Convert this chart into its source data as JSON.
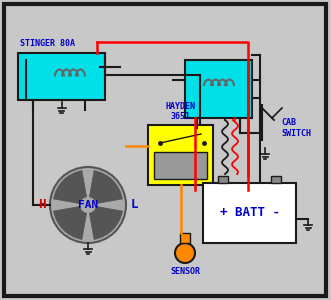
{
  "bg_color": "#c8c8c8",
  "border_color": "#1a1a1a",
  "relay_color": "#00e0e8",
  "hayden_color": "#ffff00",
  "battery_color": "#ffffff",
  "sensor_color": "#ff8800",
  "wire_red": "#ff0000",
  "wire_black": "#1a1a1a",
  "wire_orange": "#ff8800",
  "text_color": "#0000cc",
  "text_red": "#cc0000",
  "labels": {
    "stinger": "STINGER 80A",
    "hayden": "HAYDEN\n3651",
    "cab_switch": "CAB\nSWITCH",
    "fan": "FAN",
    "batt": "+ BATT -",
    "sensor": "SENSOR",
    "H": "H",
    "L": "L"
  }
}
